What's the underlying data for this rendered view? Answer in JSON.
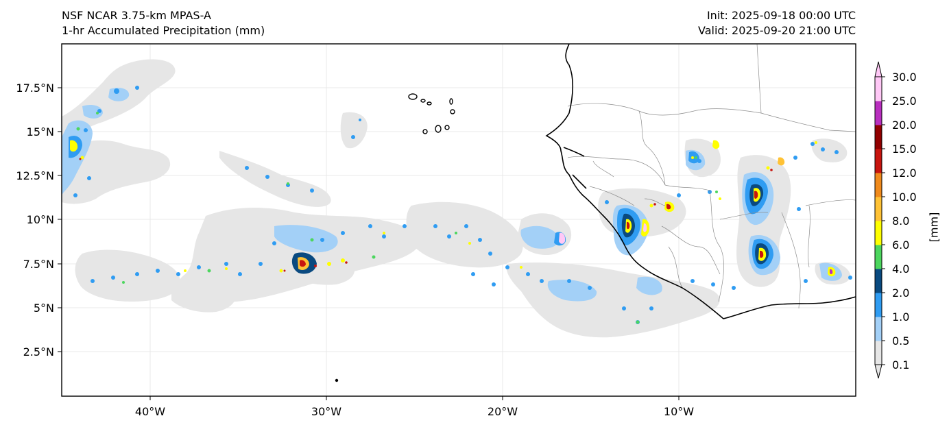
{
  "header": {
    "model": "NSF NCAR 3.75-km MPAS-A",
    "field": "1-hr Accumulated Precipitation (mm)",
    "init": "Init: 2025-09-18 00:00 UTC",
    "valid": "Valid: 2025-09-20 21:00 UTC"
  },
  "map": {
    "lat_ticks": [
      "17.5°N",
      "15°N",
      "12.5°N",
      "10°N",
      "7.5°N",
      "5°N",
      "2.5°N"
    ],
    "lon_ticks": [
      "40°W",
      "30°W",
      "20°W",
      "10°W"
    ]
  },
  "colorbar": {
    "label": "[mm]",
    "levels": [
      "0.1",
      "0.5",
      "1.0",
      "2.0",
      "4.0",
      "6.0",
      "8.0",
      "10.0",
      "12.0",
      "15.0",
      "20.0",
      "25.0",
      "30.0"
    ],
    "colors": [
      "#e6e6e6",
      "#a3d0f7",
      "#2f9cf2",
      "#0a4a80",
      "#4cd65e",
      "#ffff00",
      "#ffc235",
      "#f08a1c",
      "#c8150f",
      "#920000",
      "#b92fbf",
      "#ffc8f6"
    ]
  }
}
